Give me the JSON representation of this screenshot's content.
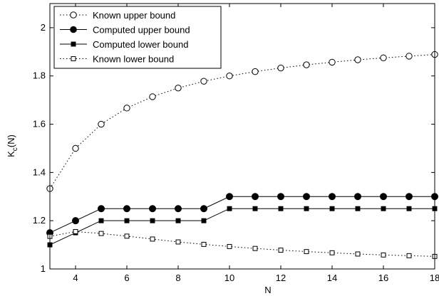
{
  "chart_data": {
    "type": "line",
    "title": "",
    "xlabel": "N",
    "ylabel_main": "K",
    "ylabel_sub": "c",
    "ylabel_tail": "(N)",
    "xlim": [
      3,
      18
    ],
    "ylim": [
      1,
      2.1
    ],
    "xticks": [
      4,
      6,
      8,
      10,
      12,
      14,
      16,
      18
    ],
    "yticks": [
      1,
      1.2,
      1.4,
      1.6,
      1.8,
      2
    ],
    "ytick_labels": [
      "1",
      "1.2",
      "1.4",
      "1.6",
      "1.8",
      "2"
    ],
    "grid": false,
    "legend_position": "top-left",
    "x": [
      3,
      4,
      5,
      6,
      7,
      8,
      9,
      10,
      11,
      12,
      13,
      14,
      15,
      16,
      17,
      18
    ],
    "series": [
      {
        "name": "Known upper bound",
        "line": "dotted",
        "marker": "circle-open",
        "values": [
          1.333,
          1.5,
          1.6,
          1.667,
          1.714,
          1.75,
          1.778,
          1.8,
          1.818,
          1.833,
          1.846,
          1.857,
          1.867,
          1.875,
          1.882,
          1.889
        ]
      },
      {
        "name": "Computed upper bound",
        "line": "solid",
        "marker": "circle-filled",
        "values": [
          1.15,
          1.2,
          1.25,
          1.25,
          1.25,
          1.25,
          1.25,
          1.3,
          1.3,
          1.3,
          1.3,
          1.3,
          1.3,
          1.3,
          1.3,
          1.3
        ]
      },
      {
        "name": "Computed lower bound",
        "line": "solid",
        "marker": "square-filled",
        "values": [
          1.1,
          1.15,
          1.2,
          1.2,
          1.2,
          1.2,
          1.2,
          1.25,
          1.25,
          1.25,
          1.25,
          1.25,
          1.25,
          1.25,
          1.25,
          1.25
        ]
      },
      {
        "name": "Known lower bound",
        "line": "dotted",
        "marker": "square-open",
        "values": [
          1.135,
          1.155,
          1.147,
          1.136,
          1.124,
          1.112,
          1.102,
          1.093,
          1.085,
          1.078,
          1.072,
          1.067,
          1.062,
          1.058,
          1.055,
          1.052
        ]
      }
    ]
  }
}
